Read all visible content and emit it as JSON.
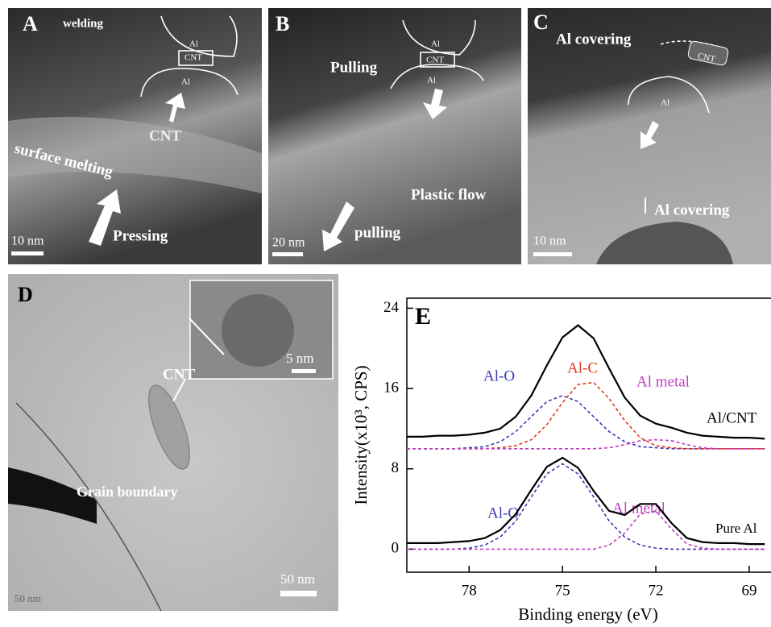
{
  "panels": [
    {
      "label": "A",
      "texts": [
        "welding",
        "Al",
        "CNT",
        "Al",
        "CNT",
        "surface melting",
        "Pressing",
        "10 nm"
      ]
    },
    {
      "label": "B",
      "texts": [
        "Pulling",
        "Al",
        "CNT",
        "Al",
        "Plastic flow",
        "pulling",
        "20 nm"
      ]
    },
    {
      "label": "C",
      "texts": [
        "Al covering",
        "CNT",
        "Al",
        "Al covering",
        "10 nm"
      ]
    },
    {
      "label": "D",
      "texts": [
        "CNT",
        "Grain boundary",
        "5 nm",
        "50 nm",
        "50 nm"
      ]
    }
  ],
  "chart_data": {
    "type": "line",
    "panel_label": "E",
    "x_label": "Binding energy (eV)",
    "y_label": "Intensity(x10³, CPS)",
    "xlim": [
      80,
      68.3
    ],
    "xticks": [
      78,
      75,
      72,
      69
    ],
    "ylim": [
      -2.3,
      25
    ],
    "yticks": [
      0,
      8,
      16,
      24
    ],
    "x": [
      80,
      79.5,
      79,
      78.5,
      78,
      77.5,
      77,
      76.5,
      76,
      75.5,
      75,
      74.5,
      74,
      73.5,
      73,
      72.5,
      72,
      71.5,
      71,
      70.5,
      70,
      69.5,
      69,
      68.5
    ],
    "series": [
      {
        "name": "Al/CNT",
        "color": "#000000",
        "dashed": false,
        "values": [
          11.2,
          11.2,
          11.3,
          11.3,
          11.4,
          11.6,
          12.0,
          13.2,
          15.3,
          18.3,
          21.1,
          22.3,
          21.0,
          18.0,
          15.1,
          13.3,
          12.5,
          12.1,
          11.6,
          11.3,
          11.2,
          11.1,
          11.1,
          11.0
        ]
      },
      {
        "name": "Al-O",
        "color": "#3a3ab8",
        "dashed": true,
        "values": [
          10,
          10,
          10,
          10,
          10.1,
          10.2,
          10.7,
          11.7,
          13.2,
          14.7,
          15.3,
          14.7,
          13.2,
          11.7,
          10.7,
          10.2,
          10.1,
          10,
          10,
          10,
          10,
          10,
          10,
          10
        ]
      },
      {
        "name": "Al-C",
        "color": "#e03a1a",
        "dashed": true,
        "values": [
          10,
          10,
          10,
          10,
          10,
          10,
          10.1,
          10.3,
          10.9,
          12.4,
          14.6,
          16.4,
          16.6,
          15.0,
          12.8,
          11.1,
          10.3,
          10.1,
          10,
          10,
          10,
          10,
          10,
          10
        ]
      },
      {
        "name": "Al metal",
        "color": "#c040c0",
        "dashed": true,
        "values": [
          10,
          10,
          10,
          10,
          10,
          10,
          10,
          10,
          10,
          10,
          10,
          10,
          10,
          10.1,
          10.4,
          10.8,
          10.9,
          10.8,
          10.4,
          10.1,
          10,
          10,
          10,
          10
        ]
      },
      {
        "name": "Pure Al",
        "color": "#000000",
        "dashed": false,
        "values": [
          0.6,
          0.6,
          0.6,
          0.7,
          0.8,
          1.1,
          1.9,
          3.5,
          5.9,
          8.2,
          9.1,
          8.1,
          5.8,
          3.8,
          3.4,
          4.5,
          4.5,
          2.6,
          1.1,
          0.7,
          0.6,
          0.6,
          0.5,
          0.5
        ]
      },
      {
        "name": "Al-O",
        "color": "#3a3ab8",
        "dashed": true,
        "values": [
          0,
          0,
          0,
          0,
          0.1,
          0.4,
          1.2,
          2.8,
          5.2,
          7.5,
          8.5,
          7.5,
          5.2,
          2.8,
          1.2,
          0.4,
          0.1,
          0,
          0,
          0,
          0,
          0,
          0,
          0
        ]
      },
      {
        "name": "Al metal",
        "color": "#c040c0",
        "dashed": true,
        "values": [
          0,
          0,
          0,
          0,
          0,
          0,
          0,
          0,
          0,
          0,
          0,
          0,
          0,
          0.4,
          1.6,
          3.5,
          3.8,
          2.0,
          0.5,
          0.1,
          0,
          0,
          0,
          0
        ]
      }
    ]
  }
}
